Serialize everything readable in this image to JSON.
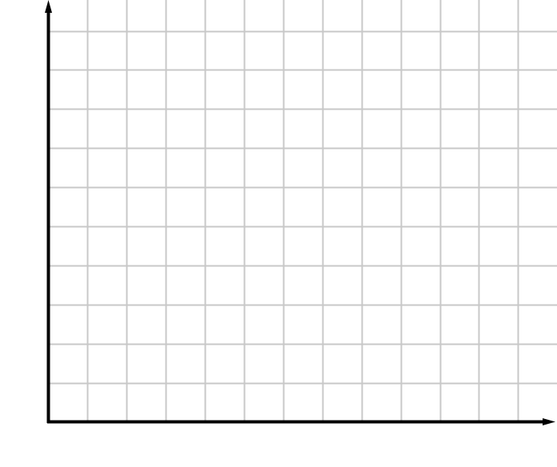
{
  "chart_data": {
    "type": "scatter",
    "title": "",
    "xlabel": "",
    "ylabel": "",
    "series": [],
    "x_gridlines": 12,
    "y_gridlines": 10,
    "grid": true,
    "axis_arrows": true,
    "tick_labels": false,
    "legend": "none"
  },
  "colors": {
    "grid": "#c8c8c8",
    "axis": "#000000",
    "background": "#ffffff"
  }
}
